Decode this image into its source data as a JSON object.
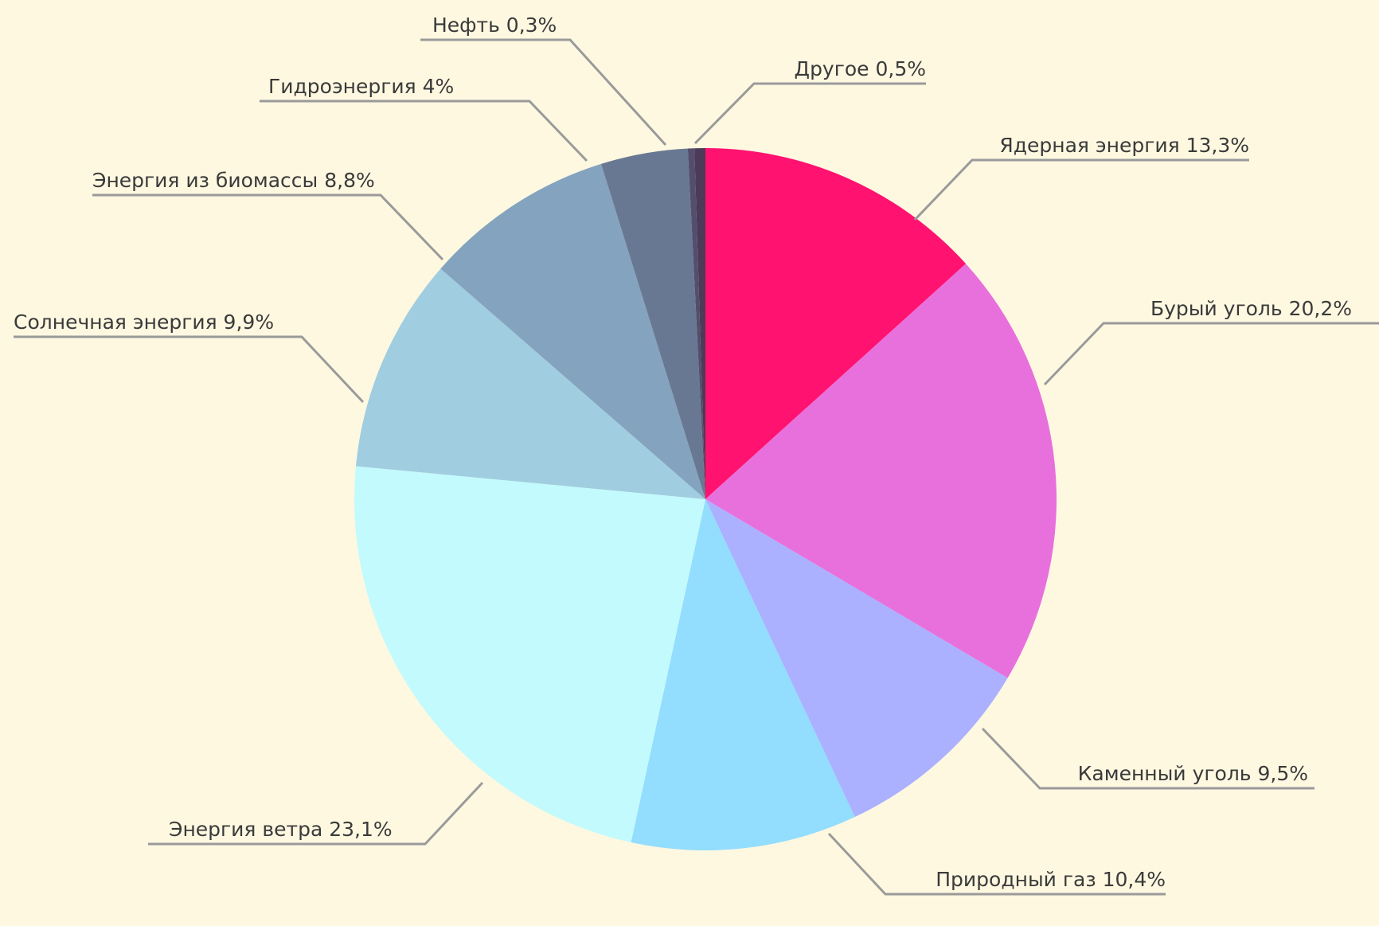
{
  "chart_data": {
    "type": "pie",
    "title": "",
    "start_angle": "12 o'clock",
    "direction": "clockwise",
    "background": "#FEF8E1",
    "slices": [
      {
        "label": "Ядерная энергия 13,3%",
        "name": "Ядерная энергия",
        "value": 13.3,
        "color": "#FF1270"
      },
      {
        "label": "Бурый уголь 20,2%",
        "name": "Бурый уголь",
        "value": 20.2,
        "color": "#E870DC"
      },
      {
        "label": "Каменный уголь 9,5%",
        "name": "Каменный уголь",
        "value": 9.5,
        "color": "#ABB0FF"
      },
      {
        "label": "Природный газ 10,4%",
        "name": "Природный газ",
        "value": 10.4,
        "color": "#93DDFF"
      },
      {
        "label": "Энергия ветра 23,1%",
        "name": "Энергия ветра",
        "value": 23.1,
        "color": "#C3FAFD"
      },
      {
        "label": "Солнечная энергия 9,9%",
        "name": "Солнечная энергия",
        "value": 9.9,
        "color": "#A0CDE0"
      },
      {
        "label": "Энергия из биомассы 8,8%",
        "name": "Энергия из биомассы",
        "value": 8.8,
        "color": "#84A3BE"
      },
      {
        "label": "Гидроэнергия 4%",
        "name": "Гидроэнергия",
        "value": 4.0,
        "color": "#697892"
      },
      {
        "label": "Нефть 0,3%",
        "name": "Нефть",
        "value": 0.3,
        "color": "#544E6E"
      },
      {
        "label": "Другое 0,5%",
        "name": "Другое",
        "value": 0.5,
        "color": "#4D3A58"
      }
    ]
  }
}
